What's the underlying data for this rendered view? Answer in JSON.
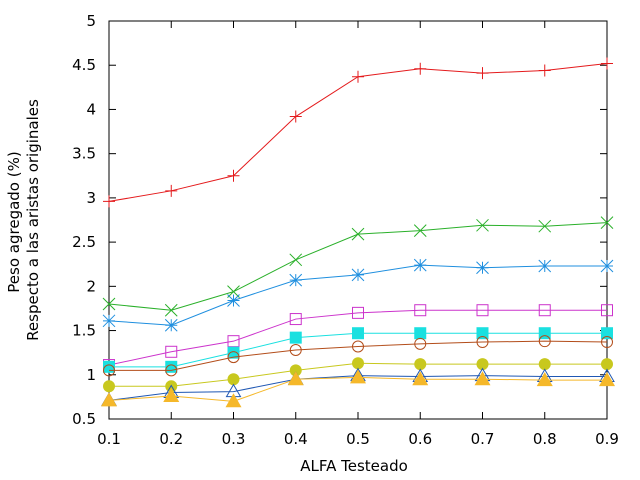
{
  "chart_data": {
    "type": "line",
    "title": "",
    "xlabel": "ALFA Testeado",
    "ylabel": [
      "Peso agregado (%)",
      "Respecto a las aristas originales"
    ],
    "xlim": [
      0.1,
      0.9
    ],
    "ylim": [
      0.5,
      5
    ],
    "xticks": [
      "0.1",
      "0.2",
      "0.3",
      "0.4",
      "0.5",
      "0.6",
      "0.7",
      "0.8",
      "0.9"
    ],
    "yticks": [
      "0.5",
      "1",
      "1.5",
      "2",
      "2.5",
      "3",
      "3.5",
      "4",
      "4.5",
      "5"
    ],
    "grid": false,
    "x": [
      0.1,
      0.2,
      0.3,
      0.4,
      0.5,
      0.6,
      0.7,
      0.8,
      0.9
    ],
    "series": [
      {
        "color": "#e41a1c",
        "marker": "plus",
        "values": [
          2.96,
          3.08,
          3.25,
          3.92,
          4.37,
          4.46,
          4.41,
          4.44,
          4.52
        ]
      },
      {
        "color": "#2ab02a",
        "marker": "cross",
        "values": [
          1.8,
          1.73,
          1.94,
          2.3,
          2.59,
          2.63,
          2.69,
          2.68,
          2.72
        ]
      },
      {
        "color": "#1f8fdf",
        "marker": "star",
        "values": [
          1.61,
          1.56,
          1.84,
          2.07,
          2.13,
          2.24,
          2.21,
          2.23,
          2.23
        ]
      },
      {
        "color": "#cc33cc",
        "marker": "square-open",
        "values": [
          1.11,
          1.26,
          1.38,
          1.63,
          1.7,
          1.73,
          1.73,
          1.73,
          1.73
        ]
      },
      {
        "color": "#1ae0e0",
        "marker": "square-filled",
        "values": [
          1.09,
          1.09,
          1.25,
          1.42,
          1.47,
          1.47,
          1.47,
          1.47,
          1.47
        ]
      },
      {
        "color": "#b34d1a",
        "marker": "circle-open",
        "values": [
          1.05,
          1.05,
          1.2,
          1.28,
          1.32,
          1.35,
          1.37,
          1.38,
          1.37
        ]
      },
      {
        "color": "#c8c81e",
        "marker": "circle-filled",
        "values": [
          0.87,
          0.87,
          0.95,
          1.05,
          1.13,
          1.12,
          1.12,
          1.12,
          1.12
        ]
      },
      {
        "color": "#1f57b3",
        "marker": "triangle-open",
        "values": [
          0.71,
          0.8,
          0.81,
          0.95,
          0.99,
          0.98,
          0.99,
          0.98,
          0.98
        ]
      },
      {
        "color": "#f5b82a",
        "marker": "triangle-filled",
        "values": [
          0.71,
          0.76,
          0.7,
          0.95,
          0.97,
          0.95,
          0.95,
          0.94,
          0.94
        ]
      }
    ]
  }
}
